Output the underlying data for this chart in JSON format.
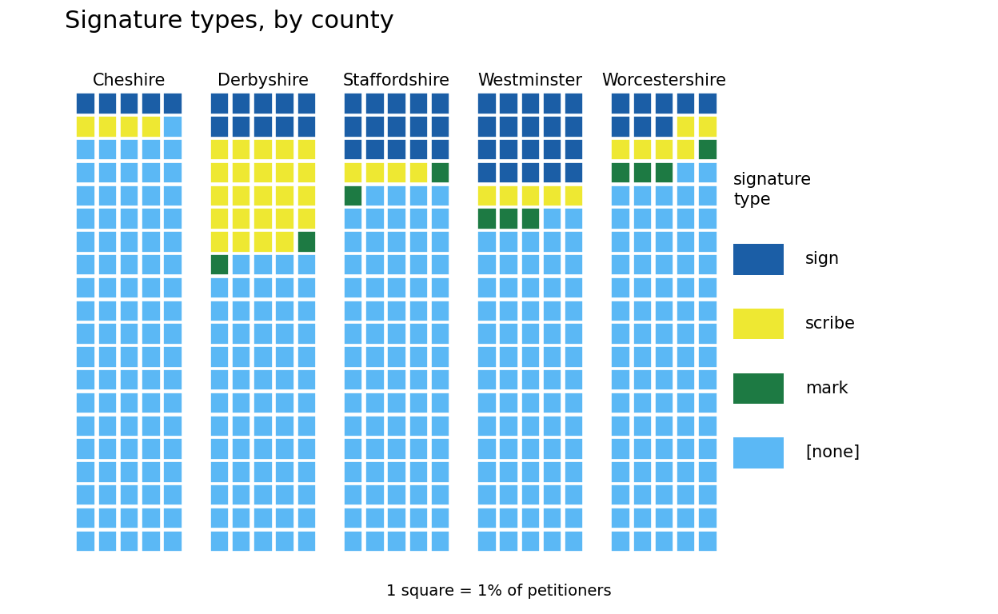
{
  "title": "Signature types, by county",
  "counties": [
    "Cheshire",
    "Derbyshire",
    "Staffordshire",
    "Westminster",
    "Worcestershire"
  ],
  "footnote": "1 square = 1% of petitioners",
  "colors": {
    "sign": "#1B5EA6",
    "scribe": "#EEE832",
    "mark": "#1D7A43",
    "none": "#5BB8F5"
  },
  "grid_cols": 5,
  "grid_rows": 20,
  "county_data": {
    "Cheshire": {
      "sign": 5,
      "scribe": 4,
      "mark": 0,
      "none": 91
    },
    "Derbyshire": {
      "sign": 10,
      "scribe": 24,
      "mark": 2,
      "none": 64
    },
    "Staffordshire": {
      "sign": 15,
      "scribe": 4,
      "mark": 2,
      "none": 79
    },
    "Westminster": {
      "sign": 20,
      "scribe": 5,
      "mark": 3,
      "none": 72
    },
    "Worcestershire": {
      "sign": 8,
      "scribe": 6,
      "mark": 4,
      "none": 82
    }
  },
  "background_color": "#FFFFFF",
  "title_fontsize": 22,
  "label_fontsize": 15,
  "legend_title_fontsize": 15,
  "legend_fontsize": 15,
  "footnote_fontsize": 14
}
